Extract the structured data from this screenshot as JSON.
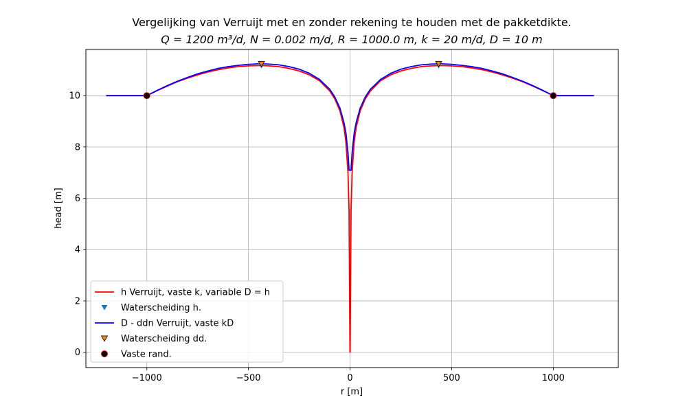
{
  "chart_data": {
    "type": "line",
    "title": "Vergelijking van Verruijt met en zonder rekening te houden met de pakketdikte.",
    "subtitle": "Q = 1200 m³/d, N = 0.002 m/d, R = 1000.0 m, k = 20 m/d, D = 10 m",
    "xlabel": "r [m]",
    "ylabel": "head [m]",
    "xlim": [
      -1300,
      1320
    ],
    "ylim": [
      -0.6,
      11.8
    ],
    "xticks": [
      -1000,
      -500,
      0,
      500,
      1000
    ],
    "xtick_labels": [
      "−1000",
      "−500",
      "0",
      "500",
      "1000"
    ],
    "yticks": [
      0,
      2,
      4,
      6,
      8,
      10
    ],
    "ytick_labels": [
      "0",
      "2",
      "4",
      "6",
      "8",
      "10"
    ],
    "grid": true,
    "legend_position": "lower-left",
    "params": {
      "Q": 1200,
      "N": 0.002,
      "R": 1000.0,
      "k": 20,
      "D": 10
    },
    "series": [
      {
        "name": "h Verruijt, vaste k, variable D = h",
        "kind": "line",
        "color": "#ff0000",
        "x": [
          -1200,
          -1000,
          -950,
          -900,
          -850,
          -800,
          -750,
          -700,
          -650,
          -600,
          -550,
          -500,
          -450,
          -434,
          -400,
          -350,
          -300,
          -250,
          -200,
          -150,
          -100,
          -75,
          -50,
          -30,
          -20,
          -10,
          -5,
          -0.5,
          0.5,
          5,
          10,
          20,
          30,
          50,
          75,
          100,
          150,
          200,
          250,
          300,
          350,
          400,
          434,
          450,
          500,
          550,
          600,
          650,
          700,
          750,
          800,
          850,
          900,
          950,
          1000,
          1200
        ],
        "y": [
          10.0,
          10.0,
          10.19,
          10.37,
          10.54,
          10.68,
          10.81,
          10.92,
          11.01,
          11.08,
          11.13,
          11.16,
          11.17,
          11.17,
          11.16,
          11.13,
          11.06,
          10.96,
          10.81,
          10.58,
          10.18,
          9.87,
          9.41,
          8.76,
          8.16,
          6.97,
          5.54,
          0.0,
          0.0,
          5.54,
          6.97,
          8.16,
          8.76,
          9.41,
          9.87,
          10.18,
          10.58,
          10.81,
          10.96,
          11.06,
          11.13,
          11.16,
          11.17,
          11.17,
          11.16,
          11.13,
          11.08,
          11.01,
          10.92,
          10.81,
          10.68,
          10.54,
          10.37,
          10.19,
          10.0,
          10.0
        ]
      },
      {
        "name": "Waterscheiding h.",
        "kind": "marker",
        "marker": "triangle-down",
        "color": "#1f77b4",
        "x": [
          -436,
          436
        ],
        "y": [
          11.17,
          11.17
        ]
      },
      {
        "name": "D - ddn Verruijt, vaste kD",
        "kind": "line",
        "color": "#0000ff",
        "x": [
          -1200,
          -1000,
          -950,
          -900,
          -850,
          -800,
          -750,
          -700,
          -650,
          -600,
          -550,
          -500,
          -450,
          -434,
          -400,
          -350,
          -300,
          -250,
          -200,
          -150,
          -100,
          -75,
          -50,
          -30,
          -20,
          -10,
          -5,
          5,
          10,
          20,
          30,
          50,
          75,
          100,
          150,
          200,
          250,
          300,
          350,
          400,
          434,
          450,
          500,
          550,
          600,
          650,
          700,
          750,
          800,
          850,
          900,
          950,
          1000,
          1200
        ],
        "y": [
          10.0,
          10.0,
          10.2,
          10.39,
          10.56,
          10.71,
          10.85,
          10.96,
          11.06,
          11.13,
          11.18,
          11.22,
          11.24,
          11.24,
          11.23,
          11.2,
          11.13,
          11.03,
          10.87,
          10.63,
          10.25,
          9.95,
          9.52,
          8.95,
          8.53,
          7.76,
          7.09,
          7.09,
          7.76,
          8.53,
          8.95,
          9.52,
          9.95,
          10.25,
          10.63,
          10.87,
          11.03,
          11.13,
          11.2,
          11.23,
          11.24,
          11.24,
          11.22,
          11.18,
          11.13,
          11.06,
          10.96,
          10.85,
          10.71,
          10.56,
          10.39,
          10.2,
          10.0,
          10.0
        ]
      },
      {
        "name": "Waterscheiding dd.",
        "kind": "marker",
        "marker": "triangle-down",
        "color": "#ff7f0e",
        "edgecolor": "#000000",
        "x": [
          -436,
          436
        ],
        "y": [
          11.24,
          11.24
        ]
      },
      {
        "name": "Vaste rand.",
        "kind": "marker",
        "marker": "circle",
        "color": "#000000",
        "edgecolor": "#ff0000",
        "x": [
          -1000,
          1000
        ],
        "y": [
          10.0,
          10.0
        ]
      }
    ]
  }
}
